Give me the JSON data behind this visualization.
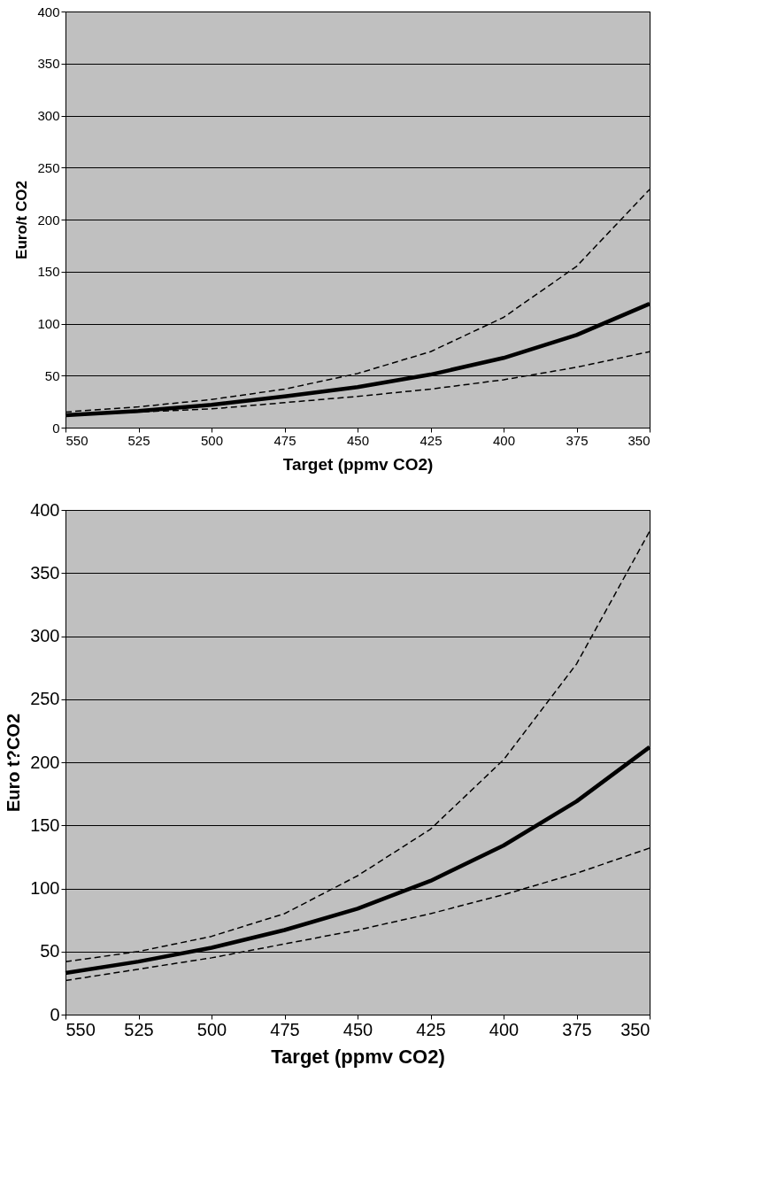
{
  "chart_data": [
    {
      "type": "line",
      "xlabel": "Target (ppmv CO2)",
      "ylabel": "Euro/t CO2",
      "categories": [
        "550",
        "525",
        "500",
        "475",
        "450",
        "425",
        "400",
        "375",
        "350"
      ],
      "series": [
        {
          "color": "#000000",
          "line_style": "dashed",
          "values": [
            15,
            20,
            27,
            37,
            52,
            73,
            106,
            155,
            229
          ]
        },
        {
          "color": "#000000",
          "line_style": "solid",
          "values": [
            12,
            16,
            22,
            30,
            39,
            51,
            67,
            89,
            119
          ]
        },
        {
          "color": "#000000",
          "line_style": "dashed",
          "values": [
            13,
            15,
            18,
            24,
            30,
            37,
            46,
            58,
            73
          ]
        }
      ],
      "ylim": [
        0,
        400
      ],
      "yticks": [
        0,
        50,
        100,
        150,
        200,
        250,
        300,
        350,
        400
      ],
      "grid": "y",
      "marker": "none"
    },
    {
      "type": "line",
      "xlabel": "Target (ppmv CO2)",
      "ylabel": "Euro t?CO2",
      "categories": [
        "550",
        "525",
        "500",
        "475",
        "450",
        "425",
        "400",
        "375",
        "350"
      ],
      "series": [
        {
          "color": "#000000",
          "line_style": "dashed",
          "values": [
            42,
            50,
            62,
            80,
            110,
            147,
            202,
            278,
            383
          ]
        },
        {
          "color": "#000000",
          "line_style": "solid",
          "values": [
            33,
            42,
            53,
            67,
            84,
            106,
            134,
            169,
            212
          ]
        },
        {
          "color": "#000000",
          "line_style": "dashed",
          "values": [
            27,
            36,
            45,
            56,
            67,
            80,
            95,
            112,
            132
          ]
        }
      ],
      "ylim": [
        0,
        400
      ],
      "yticks": [
        0,
        50,
        100,
        150,
        200,
        250,
        300,
        350,
        400
      ],
      "grid": "y",
      "marker": "none"
    }
  ]
}
